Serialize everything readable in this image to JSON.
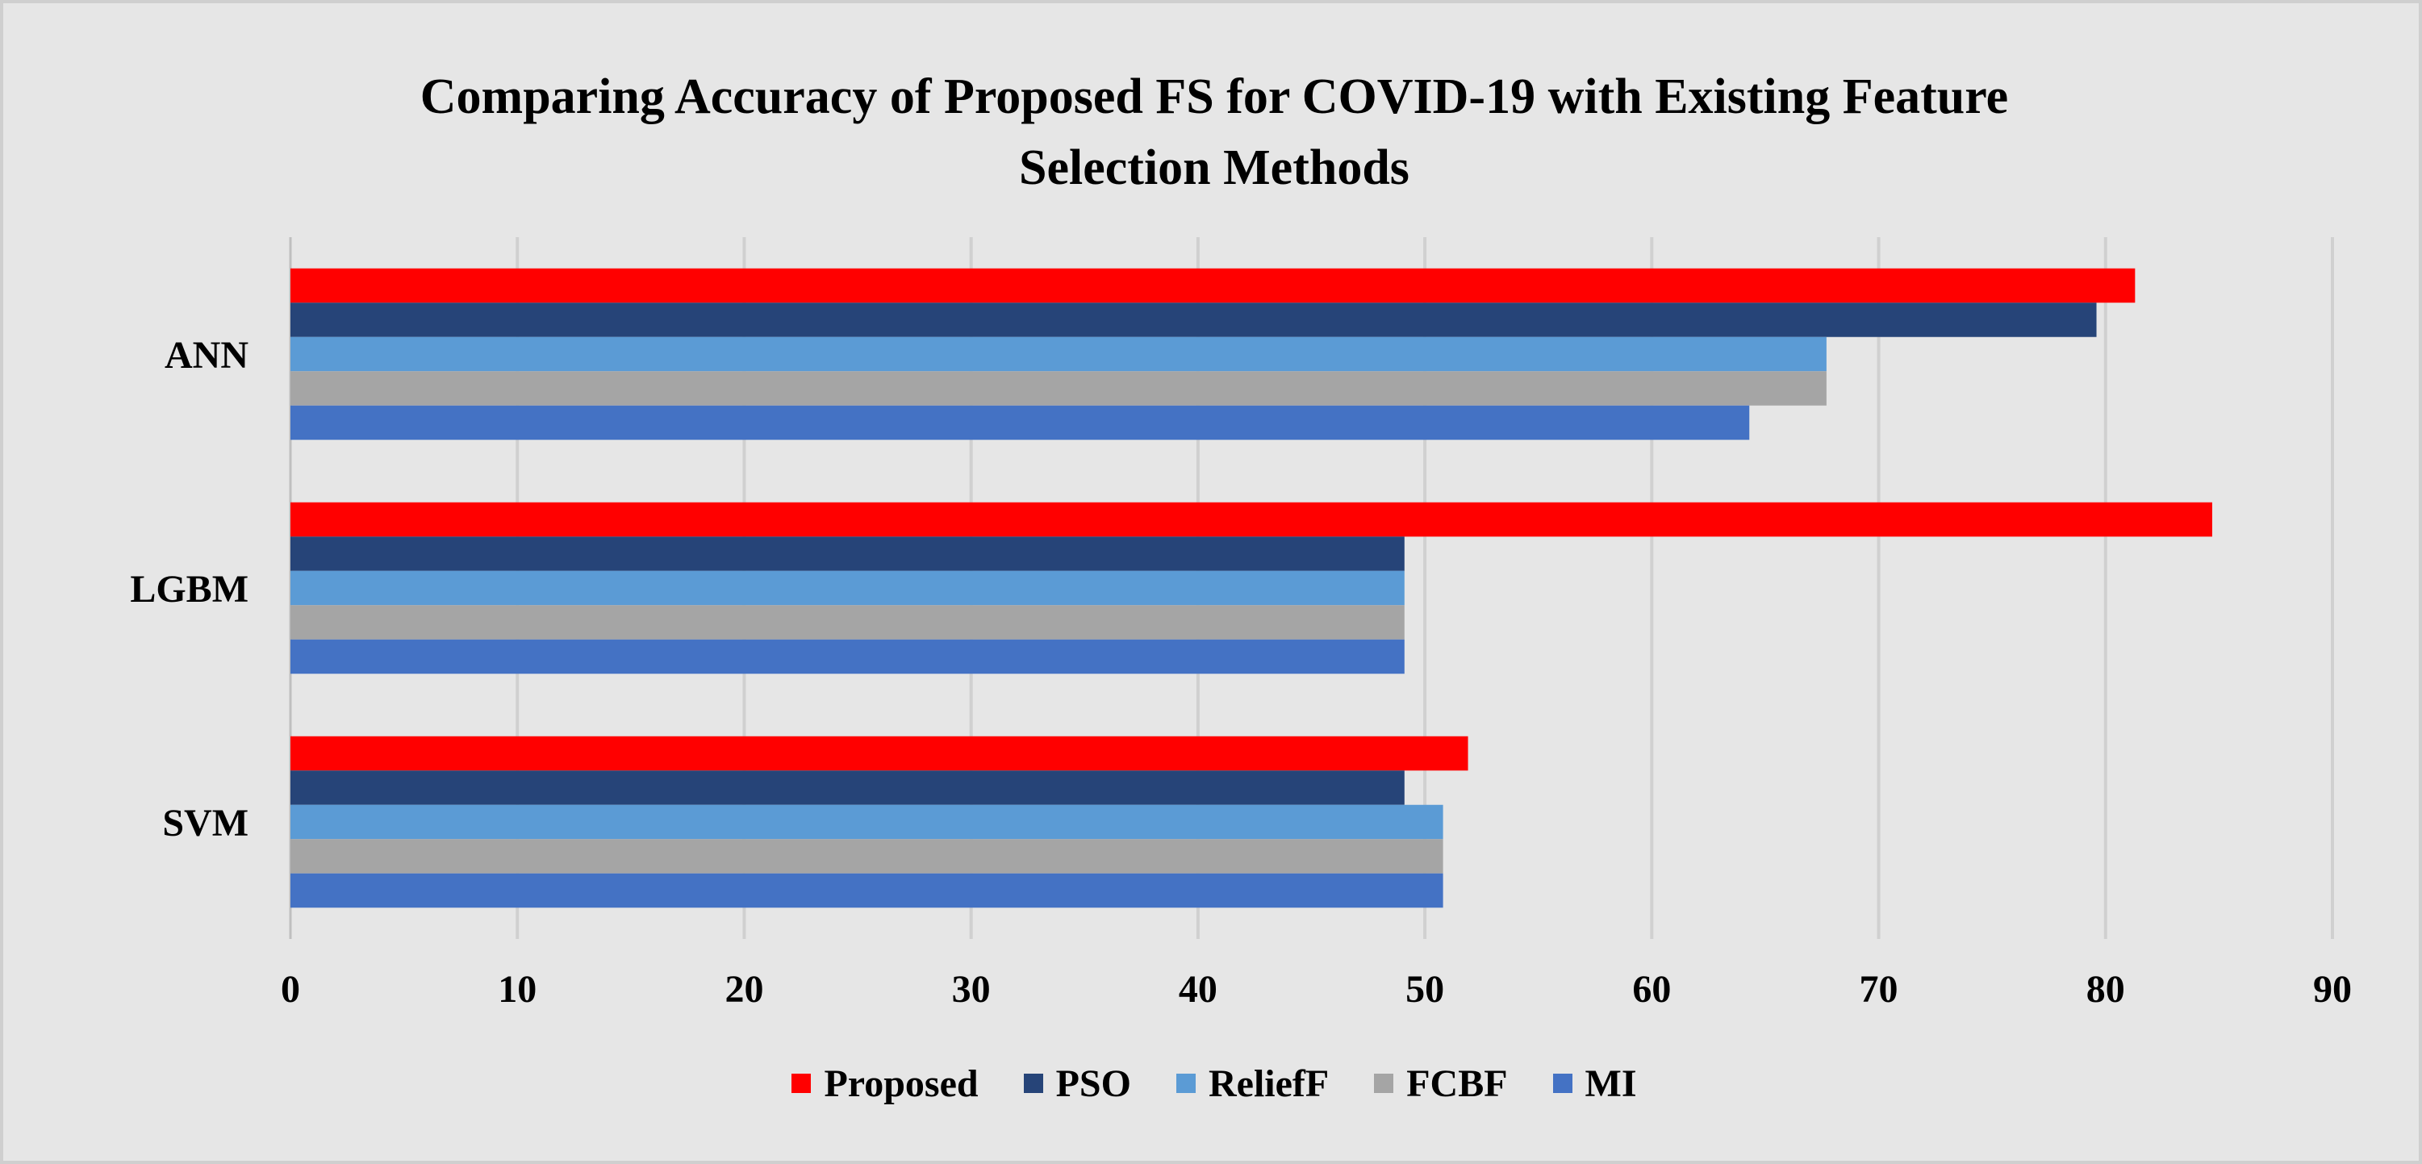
{
  "chart_data": {
    "type": "bar",
    "orientation": "horizontal",
    "title": "Comparing Accuracy of Proposed FS for COVID-19 with Existing Feature Selection Methods",
    "title_lines": [
      "Comparing Accuracy of Proposed FS for COVID-19 with Existing Feature",
      "Selection Methods"
    ],
    "categories": [
      "ANN",
      "LGBM",
      "SVM"
    ],
    "series": [
      {
        "name": "Proposed",
        "color": "#ff0000",
        "values": [
          81.3,
          84.7,
          51.9
        ]
      },
      {
        "name": "PSO",
        "color": "#264478",
        "values": [
          79.6,
          49.1,
          49.1
        ]
      },
      {
        "name": "ReliefF",
        "color": "#5b9bd5",
        "values": [
          67.7,
          49.1,
          50.8
        ]
      },
      {
        "name": "FCBF",
        "color": "#a5a5a5",
        "values": [
          67.7,
          49.1,
          50.8
        ]
      },
      {
        "name": "MI",
        "color": "#4472c4",
        "values": [
          64.3,
          49.1,
          50.8
        ]
      }
    ],
    "xlim": [
      0,
      90
    ],
    "xticks": [
      "0",
      "10",
      "20",
      "30",
      "40",
      "50",
      "60",
      "70",
      "80",
      "90"
    ],
    "grid": true,
    "legend": "bottom",
    "xlabel": "",
    "ylabel": ""
  }
}
